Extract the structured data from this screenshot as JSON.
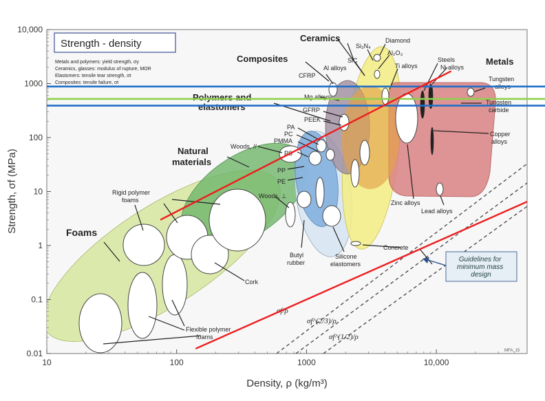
{
  "chart_data": {
    "type": "scatter",
    "title": "Strength - density",
    "subtitle_lines": [
      "Metals and polymers: yield strength, σy",
      "Ceramics, glasses: modulus of rupture, MOR",
      "Elastomers: tensile tear strength, σt",
      "Composites: tensile failure, σt"
    ],
    "xlabel": "Density, ρ  (kg/m³)",
    "ylabel": "Strength, σf (MPa)",
    "x_scale": "log",
    "y_scale": "log",
    "xlim": [
      10,
      50000
    ],
    "ylim": [
      0.01,
      10000
    ],
    "x_ticks": [
      {
        "value": 10,
        "label": "10"
      },
      {
        "value": 100,
        "label": "100"
      },
      {
        "value": 1000,
        "label": "1000"
      },
      {
        "value": 10000,
        "label": "10,000"
      }
    ],
    "y_ticks": [
      {
        "value": 0.01,
        "label": "0.01"
      },
      {
        "value": 0.1,
        "label": "0.1"
      },
      {
        "value": 1,
        "label": "1"
      },
      {
        "value": 10,
        "label": "10"
      },
      {
        "value": 100,
        "label": "100"
      },
      {
        "value": 1000,
        "label": "1000"
      },
      {
        "value": 10000,
        "label": "10,000"
      }
    ],
    "families": [
      {
        "label": "Foams",
        "color": "#cfe08a"
      },
      {
        "label": "Natural\nmaterials",
        "color": "#5fae5f"
      },
      {
        "label": "Polymers and\nelastomers",
        "color": "#7fa9d8"
      },
      {
        "label": "Composites",
        "color": "#9a8a9a"
      },
      {
        "label": "Ceramics",
        "color": "#f2ec7a"
      },
      {
        "label": "Metals",
        "color": "#d9787a"
      }
    ],
    "materials": [
      "Rigid polymer\nfoams",
      "Flexible polymer\nfoams",
      "Cork",
      "Woods, //",
      "Woods, ⊥",
      "PS",
      "PP",
      "PE",
      "PA",
      "PC",
      "PMMA",
      "PEEK",
      "GFRP",
      "CFRP",
      "Mg alloys",
      "Al alloys",
      "SiC",
      "Si₃N₄",
      "Al₂O₃",
      "Diamond",
      "Ti alloys",
      "Steels",
      "Ni alloys",
      "Tungsten\nalloys",
      "Tungsten\ncarbide",
      "Copper\nalloys",
      "Zinc alloys",
      "Lead alloys",
      "Butyl\nrubber",
      "Silicone\nelastomers",
      "Concrete"
    ],
    "guidelines_label": "Guidelines for\nminimum mass\ndesign",
    "guideline_indices": [
      "σf/ρ",
      "σf^(2/3)/ρ",
      "σf^(1/2)/ρ"
    ],
    "copyright": "MFA, 15",
    "overlay_lines": [
      {
        "color": "#1f6fc8",
        "kind": "horizontal",
        "y": 880
      },
      {
        "color": "#1f6fc8",
        "kind": "horizontal",
        "y": 390
      },
      {
        "color": "#8fd14f",
        "kind": "horizontal",
        "y": 520
      },
      {
        "color": "#ee1c1c",
        "kind": "line",
        "x": [
          75,
          13000
        ],
        "y": [
          3,
          1700
        ]
      },
      {
        "color": "#ee1c1c",
        "kind": "line",
        "x": [
          140,
          50000
        ],
        "y": [
          0.0123,
          6.5
        ]
      }
    ]
  }
}
